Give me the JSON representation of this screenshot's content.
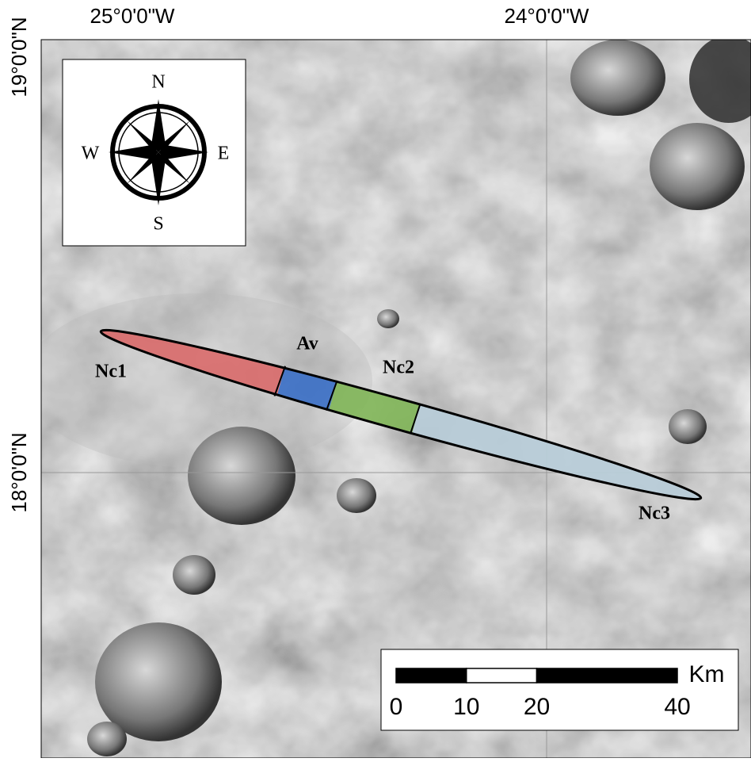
{
  "map": {
    "longitude_labels": [
      "25°0'0\"W",
      "24°0'0\"W"
    ],
    "latitude_labels": [
      "19°0'0\"N",
      "18°0'0\"N"
    ],
    "compass": {
      "north": "N",
      "east": "E",
      "south": "S",
      "west": "W"
    },
    "units": [
      "Nc1",
      "Av",
      "Nc2",
      "Nc3"
    ],
    "scale_bar": {
      "unit": "Km",
      "ticks": [
        0,
        10,
        20,
        40
      ]
    }
  }
}
